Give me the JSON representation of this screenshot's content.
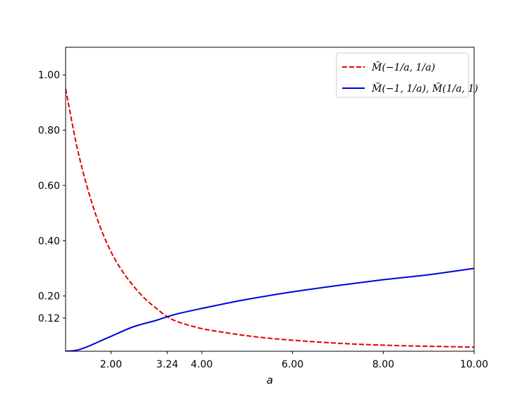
{
  "chart_data": {
    "type": "line",
    "xlabel": "a",
    "ylabel": "",
    "xlim": [
      1.0,
      10.0
    ],
    "ylim": [
      0.0,
      1.1
    ],
    "xticks": [
      2.0,
      3.24,
      4.0,
      6.0,
      8.0,
      10.0
    ],
    "xtick_labels": [
      "2.00",
      "3.24",
      "4.00",
      "6.00",
      "8.00",
      "10.00"
    ],
    "yticks": [
      0.12,
      0.2,
      0.4,
      0.6,
      0.8,
      1.0
    ],
    "ytick_labels": [
      "0.12",
      "0.20",
      "0.40",
      "0.60",
      "0.80",
      "1.00"
    ],
    "grid": false,
    "legend_position": "top-right",
    "series": [
      {
        "name": "M̃(−1/a, 1/a)",
        "color": "#e00000",
        "style": "dashed",
        "x": [
          1.0,
          1.25,
          1.5,
          1.75,
          2.0,
          2.25,
          2.5,
          2.75,
          3.0,
          3.24,
          3.5,
          4.0,
          4.5,
          5.0,
          5.5,
          6.0,
          7.0,
          8.0,
          9.0,
          10.0
        ],
        "y": [
          0.95,
          0.74,
          0.58,
          0.455,
          0.36,
          0.29,
          0.235,
          0.19,
          0.155,
          0.125,
          0.105,
          0.082,
          0.068,
          0.056,
          0.047,
          0.04,
          0.029,
          0.022,
          0.018,
          0.015
        ]
      },
      {
        "name": "M̃(−1, 1/a), M̃(1/a, 1)",
        "color": "#0000dd",
        "style": "solid",
        "x": [
          1.0,
          1.25,
          1.5,
          1.75,
          2.0,
          2.5,
          3.0,
          3.24,
          3.5,
          4.0,
          4.5,
          5.0,
          6.0,
          7.0,
          8.0,
          9.0,
          10.0
        ],
        "y": [
          0.0,
          0.004,
          0.018,
          0.036,
          0.054,
          0.089,
          0.112,
          0.125,
          0.137,
          0.155,
          0.172,
          0.188,
          0.215,
          0.238,
          0.259,
          0.277,
          0.3
        ]
      }
    ]
  }
}
